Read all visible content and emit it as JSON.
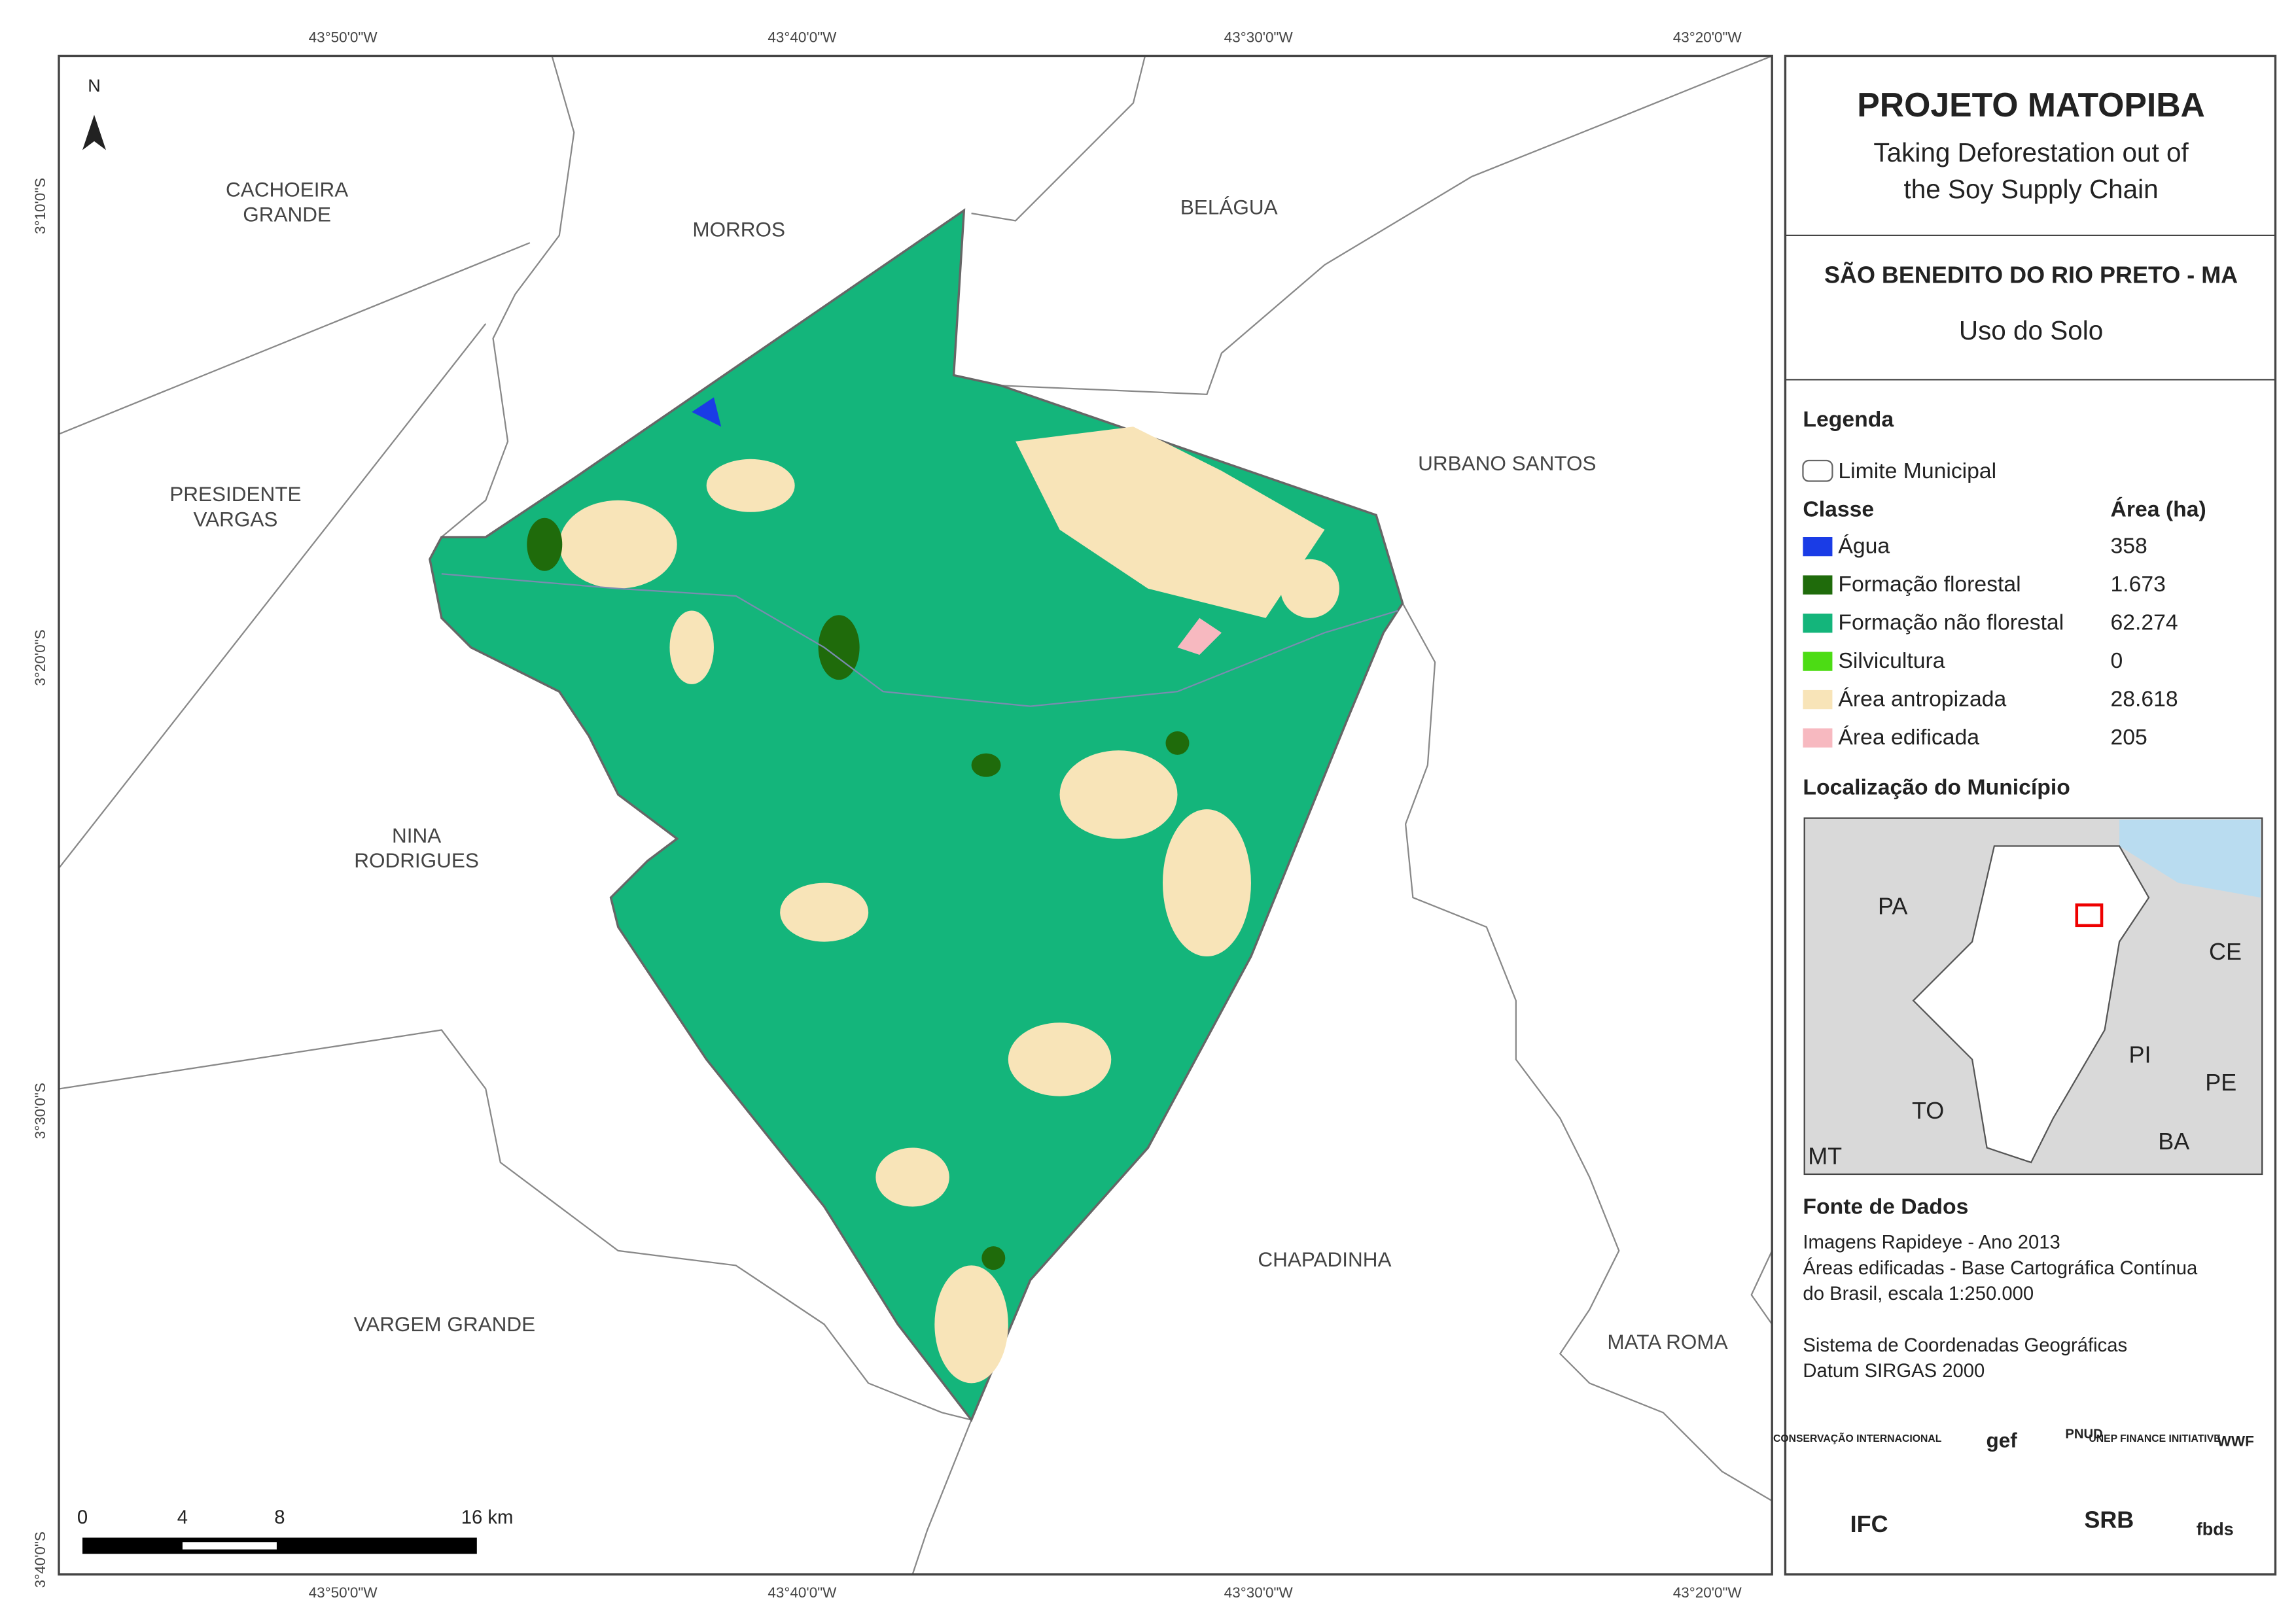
{
  "map": {
    "north": "N",
    "coords": {
      "lon": [
        "43°50'0\"W",
        "43°40'0\"W",
        "43°30'0\"W",
        "43°20'0\"W"
      ],
      "lat": [
        "3°10'0\"S",
        "3°20'0\"S",
        "3°30'0\"S",
        "3°40'0\"S"
      ]
    },
    "places": [
      "CACHOEIRA GRANDE",
      "MORROS",
      "BELÁGUA",
      "PRESIDENTE VARGAS",
      "URBANO SANTOS",
      "NINA RODRIGUES",
      "CHAPADINHA",
      "VARGEM GRANDE",
      "MATA ROMA"
    ],
    "scale": {
      "labels": [
        "0",
        "4",
        "8",
        "16 km"
      ]
    }
  },
  "panel": {
    "title": "PROJETO MATOPIBA",
    "subtitle": [
      "Taking Deforestation out of",
      "the Soy Supply Chain"
    ],
    "municipality": "SÃO BENEDITO DO RIO PRETO - MA",
    "theme": "Uso do Solo",
    "legend": {
      "heading": "Legenda",
      "boundary": "Limite Municipal",
      "class_header": "Classe",
      "area_header": "Área (ha)",
      "rows": [
        {
          "name": "Água",
          "area": "358",
          "color": "#1a3ce6"
        },
        {
          "name": "Formação florestal",
          "area": "1.673",
          "color": "#1f6b0b"
        },
        {
          "name": "Formação não florestal",
          "area": "62.274",
          "color": "#14b57b"
        },
        {
          "name": "Silvicultura",
          "area": "0",
          "color": "#4cdc14"
        },
        {
          "name": "Área antropizada",
          "area": "28.618",
          "color": "#f8e4b8"
        },
        {
          "name": "Área edificada",
          "area": "205",
          "color": "#f7b9c0"
        }
      ]
    },
    "location": {
      "heading": "Localização do Município",
      "states": [
        "PA",
        "CE",
        "PI",
        "TO",
        "PE",
        "BA",
        "MT"
      ]
    },
    "sources": {
      "heading": "Fonte de Dados",
      "lines": [
        "Imagens Rapideye - Ano 2013",
        "Áreas edificadas - Base Cartográfica Contínua",
        "do Brasil, escala 1:250.000",
        "",
        "Sistema de Coordenadas Geográficas",
        "Datum SIRGAS 2000"
      ]
    },
    "logos": [
      "CONSERVAÇÃO INTERNACIONAL",
      "gef",
      "PNUD",
      "UNEP FINANCE INITIATIVE",
      "WWF",
      "IFC",
      "SRB",
      "fbds"
    ]
  }
}
